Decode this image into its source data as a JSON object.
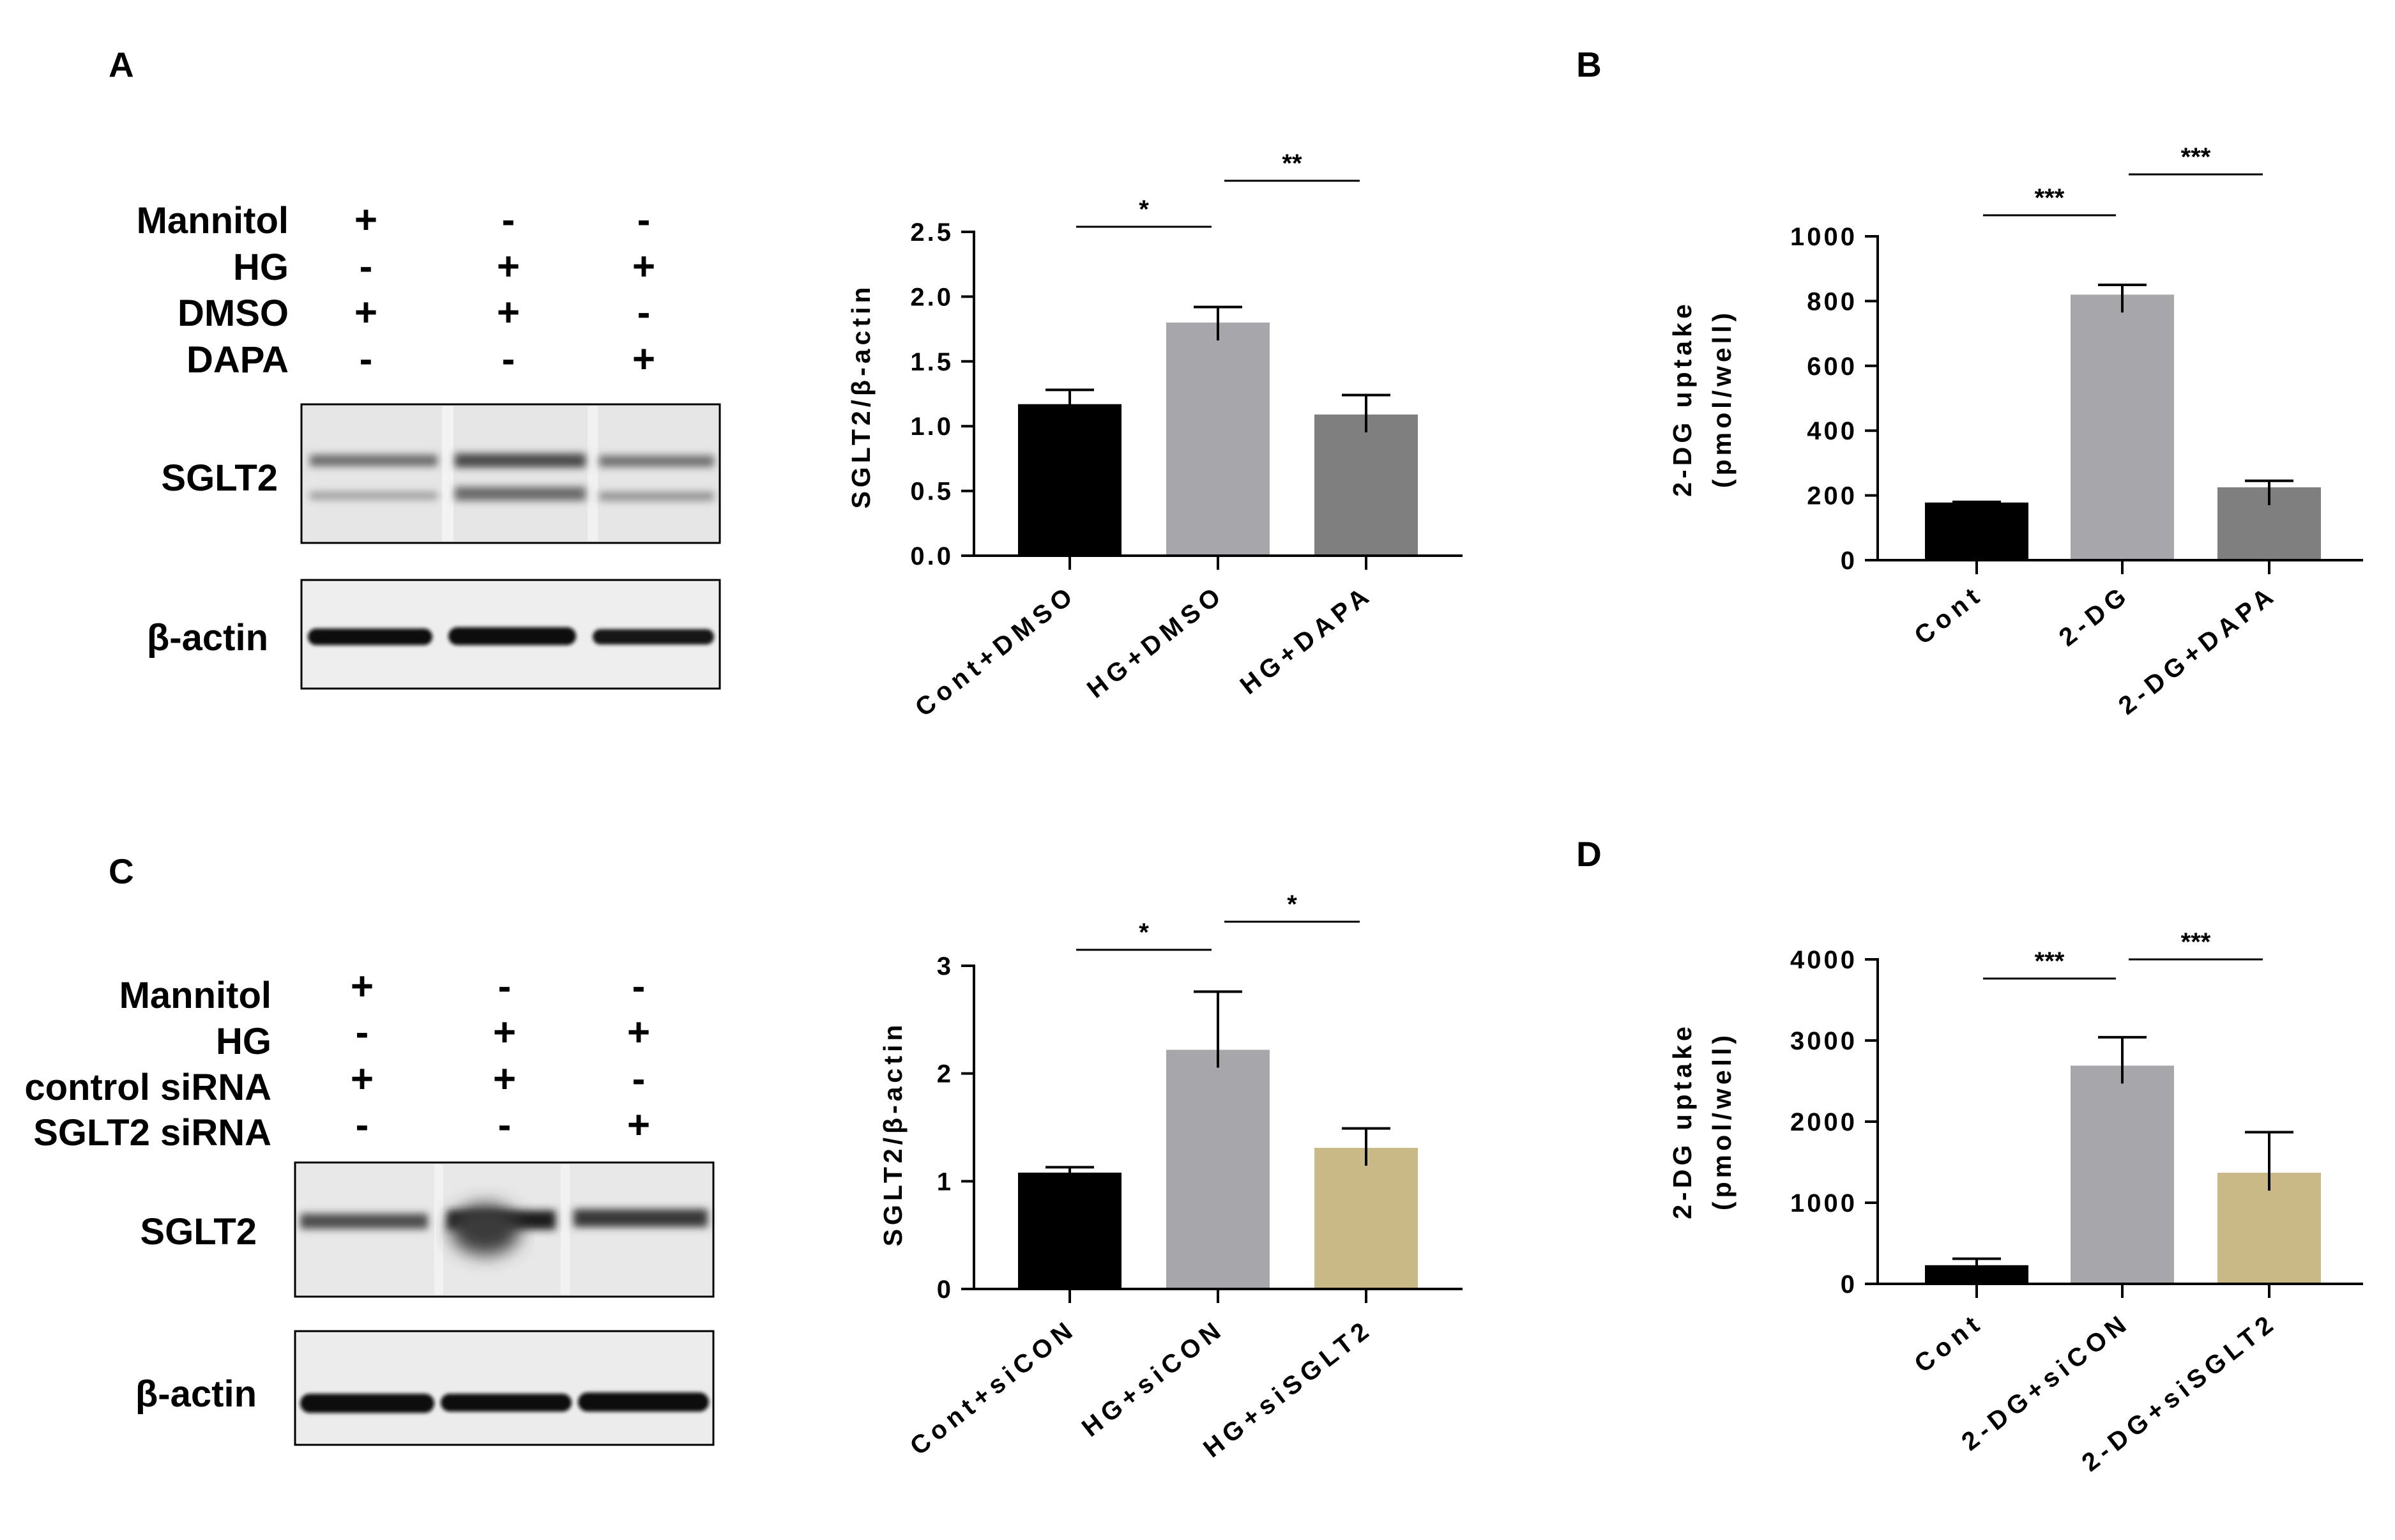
{
  "panels": {
    "a": {
      "letter": "A",
      "conditions": [
        {
          "name": "Mannitol",
          "signs": [
            "+",
            "-",
            "-"
          ]
        },
        {
          "name": "HG",
          "signs": [
            "-",
            "+",
            "+"
          ]
        },
        {
          "name": "DMSO",
          "signs": [
            "+",
            "+",
            "-"
          ]
        },
        {
          "name": "DAPA",
          "signs": [
            "-",
            "-",
            "+"
          ]
        }
      ],
      "blots": [
        "SGLT2",
        "β-actin"
      ]
    },
    "b": {
      "letter": "B"
    },
    "c": {
      "letter": "C",
      "conditions": [
        {
          "name": "Mannitol",
          "signs": [
            "+",
            "-",
            "-"
          ]
        },
        {
          "name": "HG",
          "signs": [
            "-",
            "+",
            "+"
          ]
        },
        {
          "name": "control siRNA",
          "signs": [
            "+",
            "+",
            "-"
          ]
        },
        {
          "name": "SGLT2 siRNA",
          "signs": [
            "-",
            "-",
            "+"
          ]
        }
      ],
      "blots": [
        "SGLT2",
        "β-actin"
      ]
    },
    "d": {
      "letter": "D"
    }
  },
  "chart_data": [
    {
      "type": "bar",
      "ylabel": "SGLT2/β-actin",
      "categories": [
        "Cont+DMSO",
        "HG+DMSO",
        "HG+DAPA"
      ],
      "values": [
        1.17,
        1.8,
        1.09
      ],
      "errors": [
        0.11,
        0.12,
        0.15
      ],
      "ylim": [
        0,
        2.5
      ],
      "yticks": [
        "0.0",
        "0.5",
        "1.0",
        "1.5",
        "2.0",
        "2.5"
      ],
      "colors": [
        "#000000",
        "#a6a6ab",
        "#7f7f7f"
      ],
      "significance": [
        {
          "from": 0,
          "to": 1,
          "label": "*"
        },
        {
          "from": 1,
          "to": 2,
          "label": "**"
        }
      ]
    },
    {
      "type": "bar",
      "ylabel": [
        "2-DG uptake",
        "(pmol/well)"
      ],
      "categories": [
        "Cont",
        "2-DG",
        "2-DG+DAPA"
      ],
      "values": [
        178,
        820,
        225
      ],
      "errors": [
        2,
        30,
        20
      ],
      "ylim": [
        0,
        1000
      ],
      "yticks": [
        "0",
        "200",
        "400",
        "600",
        "800",
        "1000"
      ],
      "colors": [
        "#000000",
        "#a6a6ab",
        "#7f7f7f"
      ],
      "significance": [
        {
          "from": 0,
          "to": 1,
          "label": "***"
        },
        {
          "from": 1,
          "to": 2,
          "label": "***"
        }
      ]
    },
    {
      "type": "bar",
      "ylabel": "SGLT2/β-actin",
      "categories": [
        "Cont+siCON",
        "HG+siCON",
        "HG+siSGLT2"
      ],
      "values": [
        1.08,
        2.22,
        1.31
      ],
      "errors": [
        0.05,
        0.54,
        0.18
      ],
      "ylim": [
        0,
        3
      ],
      "yticks": [
        "0",
        "1",
        "2",
        "3"
      ],
      "colors": [
        "#000000",
        "#a6a6ab",
        "#c9b987"
      ],
      "significance": [
        {
          "from": 0,
          "to": 1,
          "label": "*"
        },
        {
          "from": 1,
          "to": 2,
          "label": "*"
        }
      ]
    },
    {
      "type": "bar",
      "ylabel": [
        "2-DG uptake",
        "(pmol/well)"
      ],
      "categories": [
        "Cont",
        "2-DG+siCON",
        "2-DG+siSGLT2"
      ],
      "values": [
        230,
        2690,
        1370
      ],
      "errors": [
        80,
        350,
        500
      ],
      "ylim": [
        0,
        4000
      ],
      "yticks": [
        "0",
        "1000",
        "2000",
        "3000",
        "4000"
      ],
      "colors": [
        "#000000",
        "#a6a6ab",
        "#c9b987"
      ],
      "significance": [
        {
          "from": 0,
          "to": 1,
          "label": "***"
        },
        {
          "from": 1,
          "to": 2,
          "label": "***"
        }
      ]
    }
  ]
}
